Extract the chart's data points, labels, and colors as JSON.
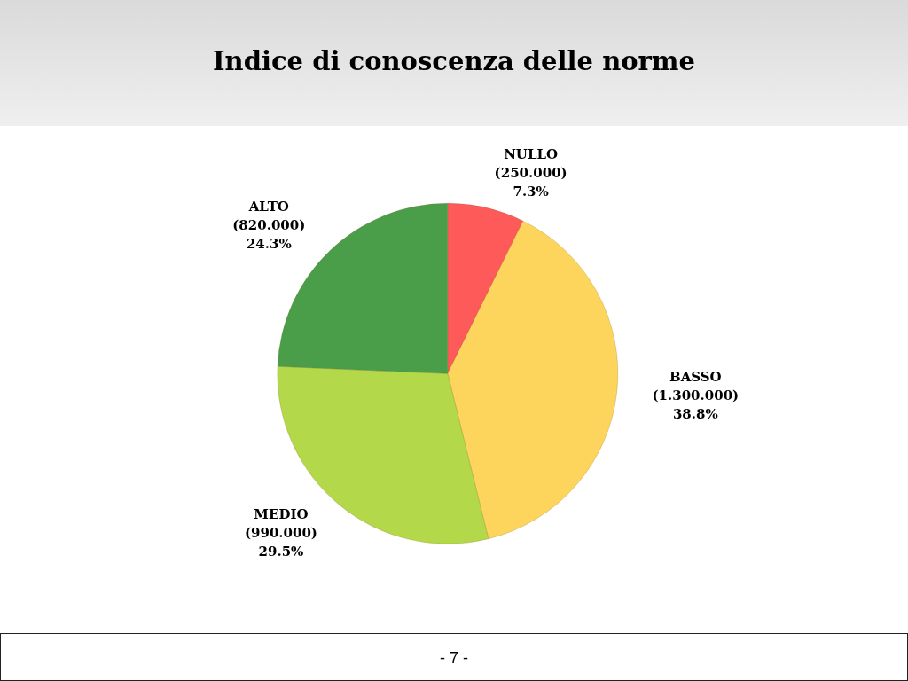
{
  "chart_data": {
    "type": "pie",
    "title": "Indice di conoscenza delle norme",
    "categories": [
      "NULLO",
      "BASSO",
      "MEDIO",
      "ALTO"
    ],
    "values": [
      7.3,
      38.8,
      29.5,
      24.3
    ],
    "colors": [
      "#ff5a5a",
      "#fdd45c",
      "#b3d84a",
      "#4a9e4a"
    ],
    "value_labels": [
      "(250.000)\n7.3%",
      "(1.300.000)\n38.8%",
      "(990.000)\n29.5%",
      "(820.000)\n24.3%"
    ],
    "annotations": [
      "- 7 -"
    ]
  }
}
